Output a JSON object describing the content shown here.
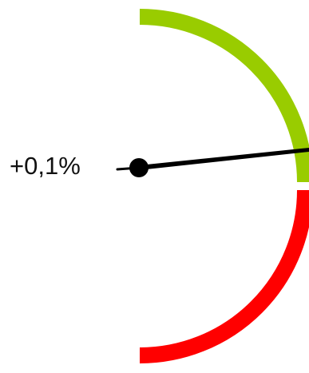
{
  "gauge": {
    "readout": "+0,1%",
    "value_fraction": 0.1,
    "colors": {
      "positive_arc": "#99cc00",
      "negative_arc": "#ff0000",
      "needle": "#000000",
      "background": "#ffffff"
    }
  }
}
